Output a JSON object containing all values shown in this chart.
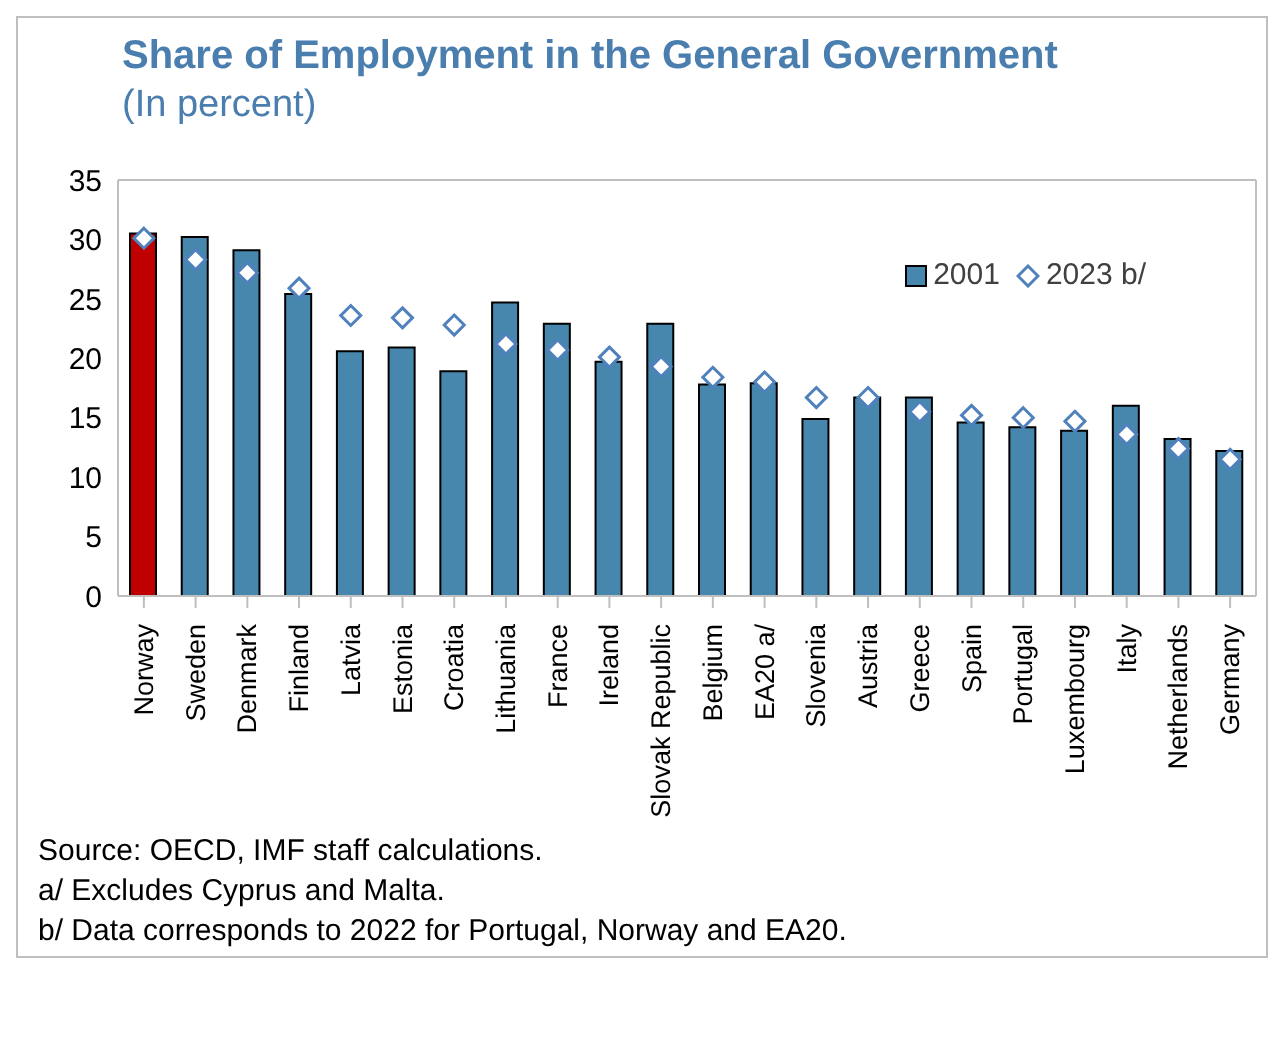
{
  "chart_data": {
    "type": "bar",
    "title": "Share of Employment in the General Government",
    "subtitle": "(In percent)",
    "categories": [
      "Norway",
      "Sweden",
      "Denmark",
      "Finland",
      "Latvia",
      "Estonia",
      "Croatia",
      "Lithuania",
      "France",
      "Ireland",
      "Slovak Republic",
      "Belgium",
      "EA20 a/",
      "Slovenia",
      "Austria",
      "Greece",
      "Spain",
      "Portugal",
      "Luxembourg",
      "Italy",
      "Netherlands",
      "Germany"
    ],
    "series": [
      {
        "name": "2001",
        "color": "#4787ad",
        "colors": [
          "#c00000",
          "#4787ad",
          "#4787ad",
          "#4787ad",
          "#4787ad",
          "#4787ad",
          "#4787ad",
          "#4787ad",
          "#4787ad",
          "#4787ad",
          "#4787ad",
          "#4787ad",
          "#4787ad",
          "#4787ad",
          "#4787ad",
          "#4787ad",
          "#4787ad",
          "#4787ad",
          "#4787ad",
          "#4787ad",
          "#4787ad",
          "#4787ad"
        ],
        "values": [
          30.5,
          30.2,
          29.1,
          25.4,
          20.6,
          20.9,
          18.9,
          24.7,
          22.9,
          19.7,
          22.9,
          17.8,
          17.9,
          14.9,
          16.7,
          16.7,
          14.6,
          14.2,
          13.9,
          16.0,
          13.2,
          12.2
        ]
      },
      {
        "name": "2023 b/",
        "type": "scatter",
        "color": "#4f81bd",
        "marker": "diamond",
        "values": [
          30.1,
          28.3,
          27.2,
          25.9,
          23.6,
          23.4,
          22.8,
          21.2,
          20.7,
          20.1,
          19.3,
          18.4,
          18.0,
          16.7,
          16.7,
          15.5,
          15.2,
          15.0,
          14.7,
          13.6,
          12.4,
          11.5
        ]
      }
    ],
    "ylim": [
      0,
      35
    ],
    "yticks": [
      0,
      5,
      10,
      15,
      20,
      25,
      30,
      35
    ],
    "legend": "top right",
    "annotations": [
      "Source: OECD, IMF staff calculations.",
      "a/ Excludes Cyprus and Malta.",
      "b/ Data corresponds to 2022 for Portugal, Norway and EA20."
    ]
  }
}
